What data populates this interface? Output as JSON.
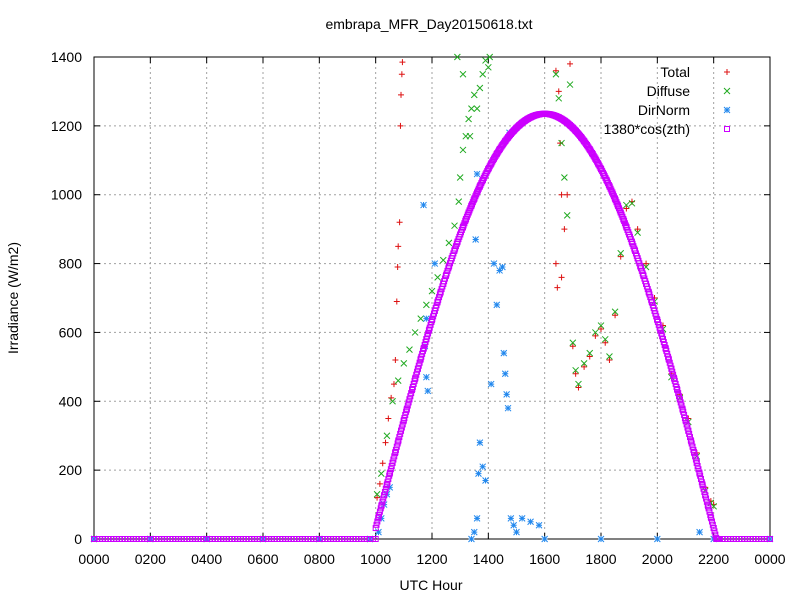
{
  "chart_data": {
    "type": "scatter",
    "title": "embrapa_MFR_Day20150618.txt",
    "xlabel": "UTC Hour",
    "ylabel": "Irradiance (W/m2)",
    "xlim": [
      0,
      24
    ],
    "ylim": [
      0,
      1400
    ],
    "x_tick_labels": [
      "0000",
      "0200",
      "0400",
      "0600",
      "0800",
      "1000",
      "1200",
      "1400",
      "1600",
      "1800",
      "2000",
      "2200",
      "0000"
    ],
    "y_ticks": [
      0,
      200,
      400,
      600,
      800,
      1000,
      1200,
      1400
    ],
    "grid": true,
    "legend_position": "top-right",
    "series": [
      {
        "name": "Total",
        "marker": "plus",
        "color": "#dd1111",
        "points": [
          [
            0.0,
            0
          ],
          [
            2.0,
            0
          ],
          [
            4.0,
            0
          ],
          [
            6.0,
            0
          ],
          [
            8.0,
            0
          ],
          [
            9.8,
            0
          ],
          [
            10.05,
            120
          ],
          [
            10.15,
            160
          ],
          [
            10.25,
            220
          ],
          [
            10.35,
            280
          ],
          [
            10.45,
            350
          ],
          [
            10.55,
            410
          ],
          [
            10.65,
            450
          ],
          [
            10.7,
            520
          ],
          [
            10.75,
            690
          ],
          [
            10.78,
            790
          ],
          [
            10.8,
            850
          ],
          [
            10.85,
            920
          ],
          [
            10.88,
            1200
          ],
          [
            10.9,
            1290
          ],
          [
            10.93,
            1350
          ],
          [
            10.95,
            1385
          ],
          [
            16.4,
            1360
          ],
          [
            16.5,
            1300
          ],
          [
            16.55,
            1150
          ],
          [
            16.6,
            1000
          ],
          [
            16.7,
            900
          ],
          [
            16.8,
            1000
          ],
          [
            16.9,
            1380
          ],
          [
            16.4,
            800
          ],
          [
            16.45,
            730
          ],
          [
            16.6,
            760
          ],
          [
            17.0,
            560
          ],
          [
            17.1,
            480
          ],
          [
            17.2,
            440
          ],
          [
            17.4,
            500
          ],
          [
            17.6,
            530
          ],
          [
            17.8,
            590
          ],
          [
            18.0,
            610
          ],
          [
            18.15,
            570
          ],
          [
            18.3,
            520
          ],
          [
            18.5,
            650
          ],
          [
            18.7,
            820
          ],
          [
            18.9,
            960
          ],
          [
            19.1,
            980
          ],
          [
            19.3,
            900
          ],
          [
            19.6,
            800
          ],
          [
            19.9,
            700
          ],
          [
            20.2,
            620
          ],
          [
            20.5,
            480
          ],
          [
            20.8,
            420
          ],
          [
            21.1,
            350
          ],
          [
            21.4,
            250
          ],
          [
            21.7,
            150
          ],
          [
            21.9,
            110
          ],
          [
            22.0,
            100
          ]
        ]
      },
      {
        "name": "Diffuse",
        "marker": "cross",
        "color": "#22aa22",
        "points": [
          [
            0.0,
            0
          ],
          [
            2.0,
            0
          ],
          [
            4.0,
            0
          ],
          [
            6.0,
            0
          ],
          [
            8.0,
            0
          ],
          [
            9.8,
            0
          ],
          [
            10.05,
            130
          ],
          [
            10.2,
            190
          ],
          [
            10.4,
            300
          ],
          [
            10.6,
            400
          ],
          [
            10.8,
            460
          ],
          [
            11.0,
            510
          ],
          [
            11.2,
            550
          ],
          [
            11.4,
            600
          ],
          [
            11.6,
            640
          ],
          [
            11.8,
            680
          ],
          [
            12.0,
            720
          ],
          [
            12.2,
            760
          ],
          [
            12.4,
            810
          ],
          [
            12.6,
            860
          ],
          [
            12.8,
            910
          ],
          [
            12.95,
            980
          ],
          [
            13.0,
            1050
          ],
          [
            13.1,
            1130
          ],
          [
            13.2,
            1170
          ],
          [
            13.3,
            1220
          ],
          [
            13.35,
            1170
          ],
          [
            13.4,
            1250
          ],
          [
            13.5,
            1290
          ],
          [
            13.6,
            1250
          ],
          [
            13.7,
            1310
          ],
          [
            13.8,
            1350
          ],
          [
            13.9,
            1390
          ],
          [
            14.0,
            1370
          ],
          [
            14.05,
            1400
          ],
          [
            13.1,
            1350
          ],
          [
            12.9,
            1400
          ],
          [
            16.4,
            1350
          ],
          [
            16.5,
            1280
          ],
          [
            16.6,
            1150
          ],
          [
            16.7,
            1050
          ],
          [
            16.8,
            940
          ],
          [
            16.9,
            1320
          ],
          [
            17.0,
            570
          ],
          [
            17.1,
            490
          ],
          [
            17.2,
            450
          ],
          [
            17.4,
            510
          ],
          [
            17.6,
            540
          ],
          [
            17.8,
            600
          ],
          [
            18.0,
            620
          ],
          [
            18.15,
            580
          ],
          [
            18.3,
            530
          ],
          [
            18.5,
            660
          ],
          [
            18.7,
            830
          ],
          [
            18.9,
            970
          ],
          [
            19.1,
            975
          ],
          [
            19.3,
            890
          ],
          [
            19.6,
            790
          ],
          [
            19.9,
            690
          ],
          [
            20.2,
            610
          ],
          [
            20.5,
            470
          ],
          [
            20.8,
            410
          ],
          [
            21.1,
            340
          ],
          [
            21.4,
            240
          ],
          [
            21.7,
            140
          ],
          [
            21.9,
            105
          ],
          [
            22.0,
            95
          ]
        ]
      },
      {
        "name": "DirNorm",
        "marker": "star",
        "color": "#2288ee",
        "points": [
          [
            0.0,
            0
          ],
          [
            2.0,
            0
          ],
          [
            4.0,
            0
          ],
          [
            6.0,
            0
          ],
          [
            8.0,
            0
          ],
          [
            9.8,
            0
          ],
          [
            10.1,
            20
          ],
          [
            10.2,
            60
          ],
          [
            10.3,
            100
          ],
          [
            10.4,
            130
          ],
          [
            10.5,
            150
          ],
          [
            11.7,
            970
          ],
          [
            11.8,
            640
          ],
          [
            11.75,
            560
          ],
          [
            11.8,
            470
          ],
          [
            11.85,
            430
          ],
          [
            12.1,
            800
          ],
          [
            13.55,
            870
          ],
          [
            13.6,
            1060
          ],
          [
            13.65,
            190
          ],
          [
            13.7,
            280
          ],
          [
            13.8,
            210
          ],
          [
            13.9,
            170
          ],
          [
            14.1,
            450
          ],
          [
            14.2,
            800
          ],
          [
            14.3,
            680
          ],
          [
            14.4,
            780
          ],
          [
            14.5,
            790
          ],
          [
            14.55,
            540
          ],
          [
            14.6,
            480
          ],
          [
            14.65,
            420
          ],
          [
            14.7,
            380
          ],
          [
            14.75,
            1180
          ],
          [
            14.8,
            60
          ],
          [
            14.9,
            40
          ],
          [
            15.0,
            20
          ],
          [
            15.2,
            60
          ],
          [
            15.5,
            50
          ],
          [
            15.8,
            40
          ],
          [
            13.6,
            60
          ],
          [
            13.5,
            20
          ],
          [
            13.4,
            0
          ],
          [
            16.0,
            0
          ],
          [
            18.0,
            0
          ],
          [
            20.0,
            0
          ],
          [
            21.5,
            20
          ],
          [
            22.0,
            0
          ],
          [
            24.0,
            0
          ]
        ]
      },
      {
        "name": "1380*cos(zth)",
        "marker": "square",
        "color": "#cc00ff",
        "curve": {
          "start": 10.0,
          "end": 22.2,
          "peak_time": 16.0,
          "peak_value": 1235
        }
      }
    ]
  }
}
